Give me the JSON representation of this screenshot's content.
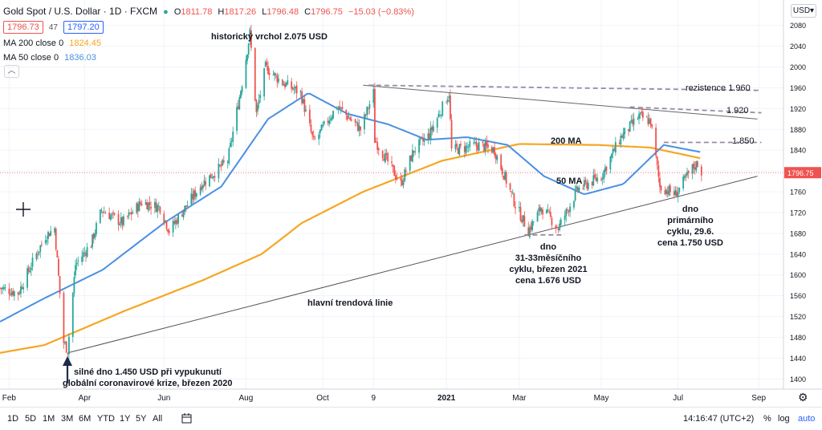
{
  "header": {
    "symbol": "Gold Spot / U.S. Dollar · 1D · FXCM",
    "open_label": "O",
    "open": "1811.78",
    "high_label": "H",
    "high": "1817.26",
    "low_label": "L",
    "low": "1796.48",
    "close_label": "C",
    "close": "1796.75",
    "change": "−15.03 (−0.83%)",
    "bid": "1796.73",
    "spread": "47",
    "ask": "1797.20"
  },
  "indicators": {
    "ma200_label": "MA 200 close 0",
    "ma200_value": "1824.45",
    "ma50_label": "MA 50 close 0",
    "ma50_value": "1836.03"
  },
  "currency": "USD",
  "price_tag": "1796.75",
  "timeframes": [
    "1D",
    "5D",
    "1M",
    "3M",
    "6M",
    "YTD",
    "1Y",
    "5Y",
    "All"
  ],
  "clock": "14:16:47 (UTC+2)",
  "pct_label": "%",
  "log_label": "log",
  "auto_label": "auto",
  "colors": {
    "up": "#26a69a",
    "down": "#ef5350",
    "ma200": "#f5a623",
    "ma50": "#4a90e2",
    "resistance": "#9c8aa0",
    "trendline": "#555555"
  },
  "icons": [
    "plus-icon",
    "calendar-icon",
    "gear-icon",
    "chevron-down-icon",
    "dot-icon"
  ],
  "chart_data": {
    "type": "candlestick",
    "title": "Gold Spot / U.S. Dollar · 1D · FXCM",
    "x_ticks": [
      "Feb",
      "Apr",
      "Jun",
      "Aug",
      "Oct",
      "9",
      "2021",
      "Mar",
      "May",
      "Jul",
      "Sep"
    ],
    "y_ticks": [
      1400,
      1440,
      1480,
      1520,
      1560,
      1600,
      1640,
      1680,
      1720,
      1760,
      1800,
      1840,
      1880,
      1920,
      1960,
      2000,
      2040,
      2080
    ],
    "ylim": [
      1385,
      2095
    ],
    "xlim": [
      "2020-01-27",
      "2021-09-20"
    ],
    "price_path": [
      [
        "2020-01-27",
        1575
      ],
      [
        "2020-02-10",
        1565
      ],
      [
        "2020-02-24",
        1640
      ],
      [
        "2020-03-02",
        1675
      ],
      [
        "2020-03-09",
        1690
      ],
      [
        "2020-03-16",
        1470
      ],
      [
        "2020-03-19",
        1455
      ],
      [
        "2020-03-25",
        1620
      ],
      [
        "2020-04-06",
        1660
      ],
      [
        "2020-04-14",
        1725
      ],
      [
        "2020-04-30",
        1700
      ],
      [
        "2020-05-15",
        1740
      ],
      [
        "2020-05-29",
        1730
      ],
      [
        "2020-06-05",
        1685
      ],
      [
        "2020-06-30",
        1775
      ],
      [
        "2020-07-20",
        1820
      ],
      [
        "2020-07-31",
        1970
      ],
      [
        "2020-08-06",
        2065
      ],
      [
        "2020-08-11",
        1910
      ],
      [
        "2020-08-18",
        2000
      ],
      [
        "2020-08-31",
        1970
      ],
      [
        "2020-09-14",
        1950
      ],
      [
        "2020-09-24",
        1855
      ],
      [
        "2020-10-12",
        1925
      ],
      [
        "2020-10-30",
        1880
      ],
      [
        "2020-11-09",
        1950
      ],
      [
        "2020-11-10",
        1860
      ],
      [
        "2020-11-30",
        1775
      ],
      [
        "2020-12-10",
        1840
      ],
      [
        "2020-12-22",
        1870
      ],
      [
        "2021-01-06",
        1950
      ],
      [
        "2021-01-08",
        1840
      ],
      [
        "2021-01-29",
        1850
      ],
      [
        "2021-02-10",
        1840
      ],
      [
        "2021-02-26",
        1735
      ],
      [
        "2021-03-08",
        1685
      ],
      [
        "2021-03-18",
        1730
      ],
      [
        "2021-03-31",
        1690
      ],
      [
        "2021-04-15",
        1765
      ],
      [
        "2021-05-03",
        1790
      ],
      [
        "2021-05-18",
        1865
      ],
      [
        "2021-06-01",
        1905
      ],
      [
        "2021-06-10",
        1895
      ],
      [
        "2021-06-17",
        1770
      ],
      [
        "2021-06-29",
        1755
      ],
      [
        "2021-07-12",
        1805
      ],
      [
        "2021-07-16",
        1815
      ],
      [
        "2021-07-19",
        1797
      ]
    ],
    "ma200_path": [
      [
        "2020-01-27",
        1450
      ],
      [
        "2020-03-01",
        1465
      ],
      [
        "2020-05-01",
        1530
      ],
      [
        "2020-07-01",
        1590
      ],
      [
        "2020-08-15",
        1640
      ],
      [
        "2020-09-15",
        1700
      ],
      [
        "2020-11-01",
        1760
      ],
      [
        "2021-01-01",
        1820
      ],
      [
        "2021-03-01",
        1852
      ],
      [
        "2021-05-01",
        1850
      ],
      [
        "2021-06-10",
        1845
      ],
      [
        "2021-07-19",
        1824
      ]
    ],
    "ma50_path": [
      [
        "2020-01-27",
        1510
      ],
      [
        "2020-03-01",
        1555
      ],
      [
        "2020-04-15",
        1610
      ],
      [
        "2020-06-01",
        1700
      ],
      [
        "2020-07-15",
        1770
      ],
      [
        "2020-08-20",
        1900
      ],
      [
        "2020-09-20",
        1950
      ],
      [
        "2020-10-20",
        1910
      ],
      [
        "2020-11-20",
        1890
      ],
      [
        "2020-12-20",
        1860
      ],
      [
        "2021-01-20",
        1865
      ],
      [
        "2021-02-20",
        1850
      ],
      [
        "2021-03-20",
        1790
      ],
      [
        "2021-04-20",
        1755
      ],
      [
        "2021-05-20",
        1775
      ],
      [
        "2021-06-20",
        1850
      ],
      [
        "2021-07-19",
        1836
      ]
    ],
    "lines": [
      {
        "kind": "trend",
        "from": [
          "2020-03-19",
          1450
        ],
        "to": [
          "2021-08-31",
          1790
        ]
      },
      {
        "kind": "resistance-slope",
        "from": [
          "2020-11-01",
          1965
        ],
        "to": [
          "2021-08-31",
          1900
        ]
      },
      {
        "kind": "resistance",
        "from": [
          "2020-11-05",
          1965
        ],
        "to": [
          "2021-09-03",
          1955
        ],
        "dash": true
      },
      {
        "kind": "resistance",
        "from": [
          "2021-05-25",
          1923
        ],
        "to": [
          "2021-09-03",
          1912
        ],
        "dash": true
      },
      {
        "kind": "resistance",
        "from": [
          "2021-06-20",
          1855
        ],
        "to": [
          "2021-09-03",
          1855
        ],
        "dash": true
      },
      {
        "kind": "support",
        "from": [
          "2021-03-05",
          1677
        ],
        "to": [
          "2021-04-05",
          1677
        ],
        "dash": true
      }
    ],
    "annotations": [
      {
        "text": "historický vrchol 2.075 USD"
      },
      {
        "text": "rezistence 1.960"
      },
      {
        "text": "1.920"
      },
      {
        "text": "1.850"
      },
      {
        "text": "200 MA"
      },
      {
        "text": "50 MA"
      },
      {
        "text": "hlavní trendová linie"
      },
      {
        "text": "dno"
      },
      {
        "text": "primárního"
      },
      {
        "text": "cyklu, 29.6."
      },
      {
        "text": "cena 1.750 USD"
      },
      {
        "text": "dno"
      },
      {
        "text": "31-33měsíčního"
      },
      {
        "text": "cyklu, březen 2021"
      },
      {
        "text": "cena 1.676 USD"
      },
      {
        "text": "silné dno 1.450 USD při vypukunutí"
      },
      {
        "text": "globální coronavirové krize, březen 2020"
      }
    ]
  }
}
